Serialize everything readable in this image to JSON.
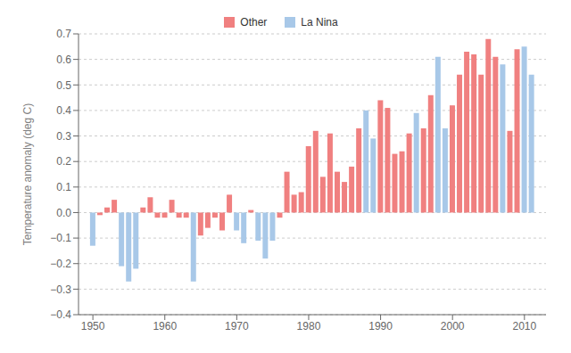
{
  "chart_data": {
    "type": "bar",
    "x": [
      1950,
      1951,
      1952,
      1953,
      1954,
      1955,
      1956,
      1957,
      1958,
      1959,
      1960,
      1961,
      1962,
      1963,
      1964,
      1965,
      1966,
      1967,
      1968,
      1969,
      1970,
      1971,
      1972,
      1973,
      1974,
      1975,
      1976,
      1977,
      1978,
      1979,
      1980,
      1981,
      1982,
      1983,
      1984,
      1985,
      1986,
      1987,
      1988,
      1989,
      1990,
      1991,
      1992,
      1993,
      1994,
      1995,
      1996,
      1997,
      1998,
      1999,
      2000,
      2001,
      2002,
      2003,
      2004,
      2005,
      2006,
      2007,
      2008,
      2009,
      2010,
      2011
    ],
    "series": [
      {
        "name": "Other",
        "color": "#F08080",
        "values": [
          null,
          -0.01,
          0.02,
          0.05,
          null,
          null,
          null,
          0.02,
          0.06,
          -0.02,
          -0.02,
          0.05,
          -0.02,
          -0.02,
          null,
          -0.09,
          -0.06,
          -0.02,
          -0.07,
          0.07,
          null,
          null,
          0.01,
          null,
          null,
          null,
          -0.02,
          0.16,
          0.07,
          0.08,
          0.26,
          0.32,
          0.14,
          0.31,
          0.16,
          0.12,
          0.18,
          0.33,
          null,
          null,
          0.44,
          0.41,
          0.23,
          0.24,
          0.31,
          null,
          0.33,
          0.46,
          null,
          null,
          0.42,
          0.54,
          0.63,
          0.62,
          0.54,
          0.68,
          0.61,
          null,
          0.32,
          0.64,
          null,
          null
        ]
      },
      {
        "name": "La Nina",
        "color": "#A8C8E8",
        "values": [
          -0.13,
          null,
          null,
          null,
          -0.21,
          -0.27,
          -0.22,
          null,
          null,
          null,
          null,
          null,
          null,
          null,
          -0.27,
          null,
          null,
          null,
          null,
          null,
          -0.07,
          -0.12,
          null,
          -0.11,
          -0.18,
          -0.11,
          null,
          null,
          null,
          null,
          null,
          null,
          null,
          null,
          null,
          null,
          null,
          null,
          0.4,
          0.29,
          null,
          null,
          null,
          null,
          null,
          0.39,
          null,
          null,
          0.61,
          0.33,
          null,
          null,
          null,
          null,
          null,
          null,
          null,
          0.58,
          null,
          null,
          0.65,
          0.54
        ]
      }
    ],
    "ylabel": "Temperature anomaly (deg C)",
    "xlim": [
      1948.0,
      2013.0
    ],
    "xticks": [
      1950,
      1960,
      1970,
      1980,
      1990,
      2000,
      2010
    ],
    "ylim": [
      -0.4,
      0.7
    ],
    "yticks": [
      {
        "value": -0.4,
        "label": "−0.4"
      },
      {
        "value": -0.3,
        "label": "−0.3"
      },
      {
        "value": -0.2,
        "label": "−0.2"
      },
      {
        "value": -0.1,
        "label": "−0.1"
      },
      {
        "value": 0.0,
        "label": "0.0"
      },
      0.1,
      0.2,
      0.3,
      0.4,
      0.5,
      0.6,
      0.7
    ],
    "grid": true,
    "legend": "top"
  }
}
